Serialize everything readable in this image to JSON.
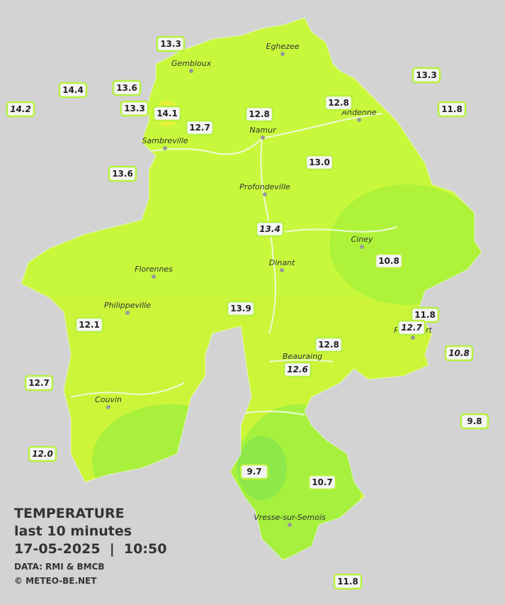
{
  "title": [
    "TEMPERATURE",
    "last 10 minutes",
    "17-05-2025  |  10:50"
  ],
  "credits": [
    "DATA: RMI & BMCB",
    "© METEO-BE.NET"
  ],
  "cities": [
    "Eghezee",
    "Gembloux",
    "Andenne",
    "Namur",
    "Sambreville",
    "Profondeville",
    "Ciney",
    "Dinant",
    "Florennes",
    "Philippeville",
    "Rochefort",
    "Beauraing",
    "Couvin",
    "Vresse-sur-Semois"
  ],
  "stations": [
    "13.3",
    "14.4",
    "14.2",
    "13.6",
    "13.3",
    "14.1",
    "12.7",
    "12.8",
    "12.8",
    "13.3",
    "11.8",
    "13.0",
    "13.6",
    "13.4",
    "10.8",
    "13.9",
    "11.8",
    "12.7",
    "12.1",
    "12.8",
    "12.6",
    "10.8",
    "12.7",
    "9.8",
    "12.0",
    "9.7",
    "10.7",
    "11.8"
  ]
}
